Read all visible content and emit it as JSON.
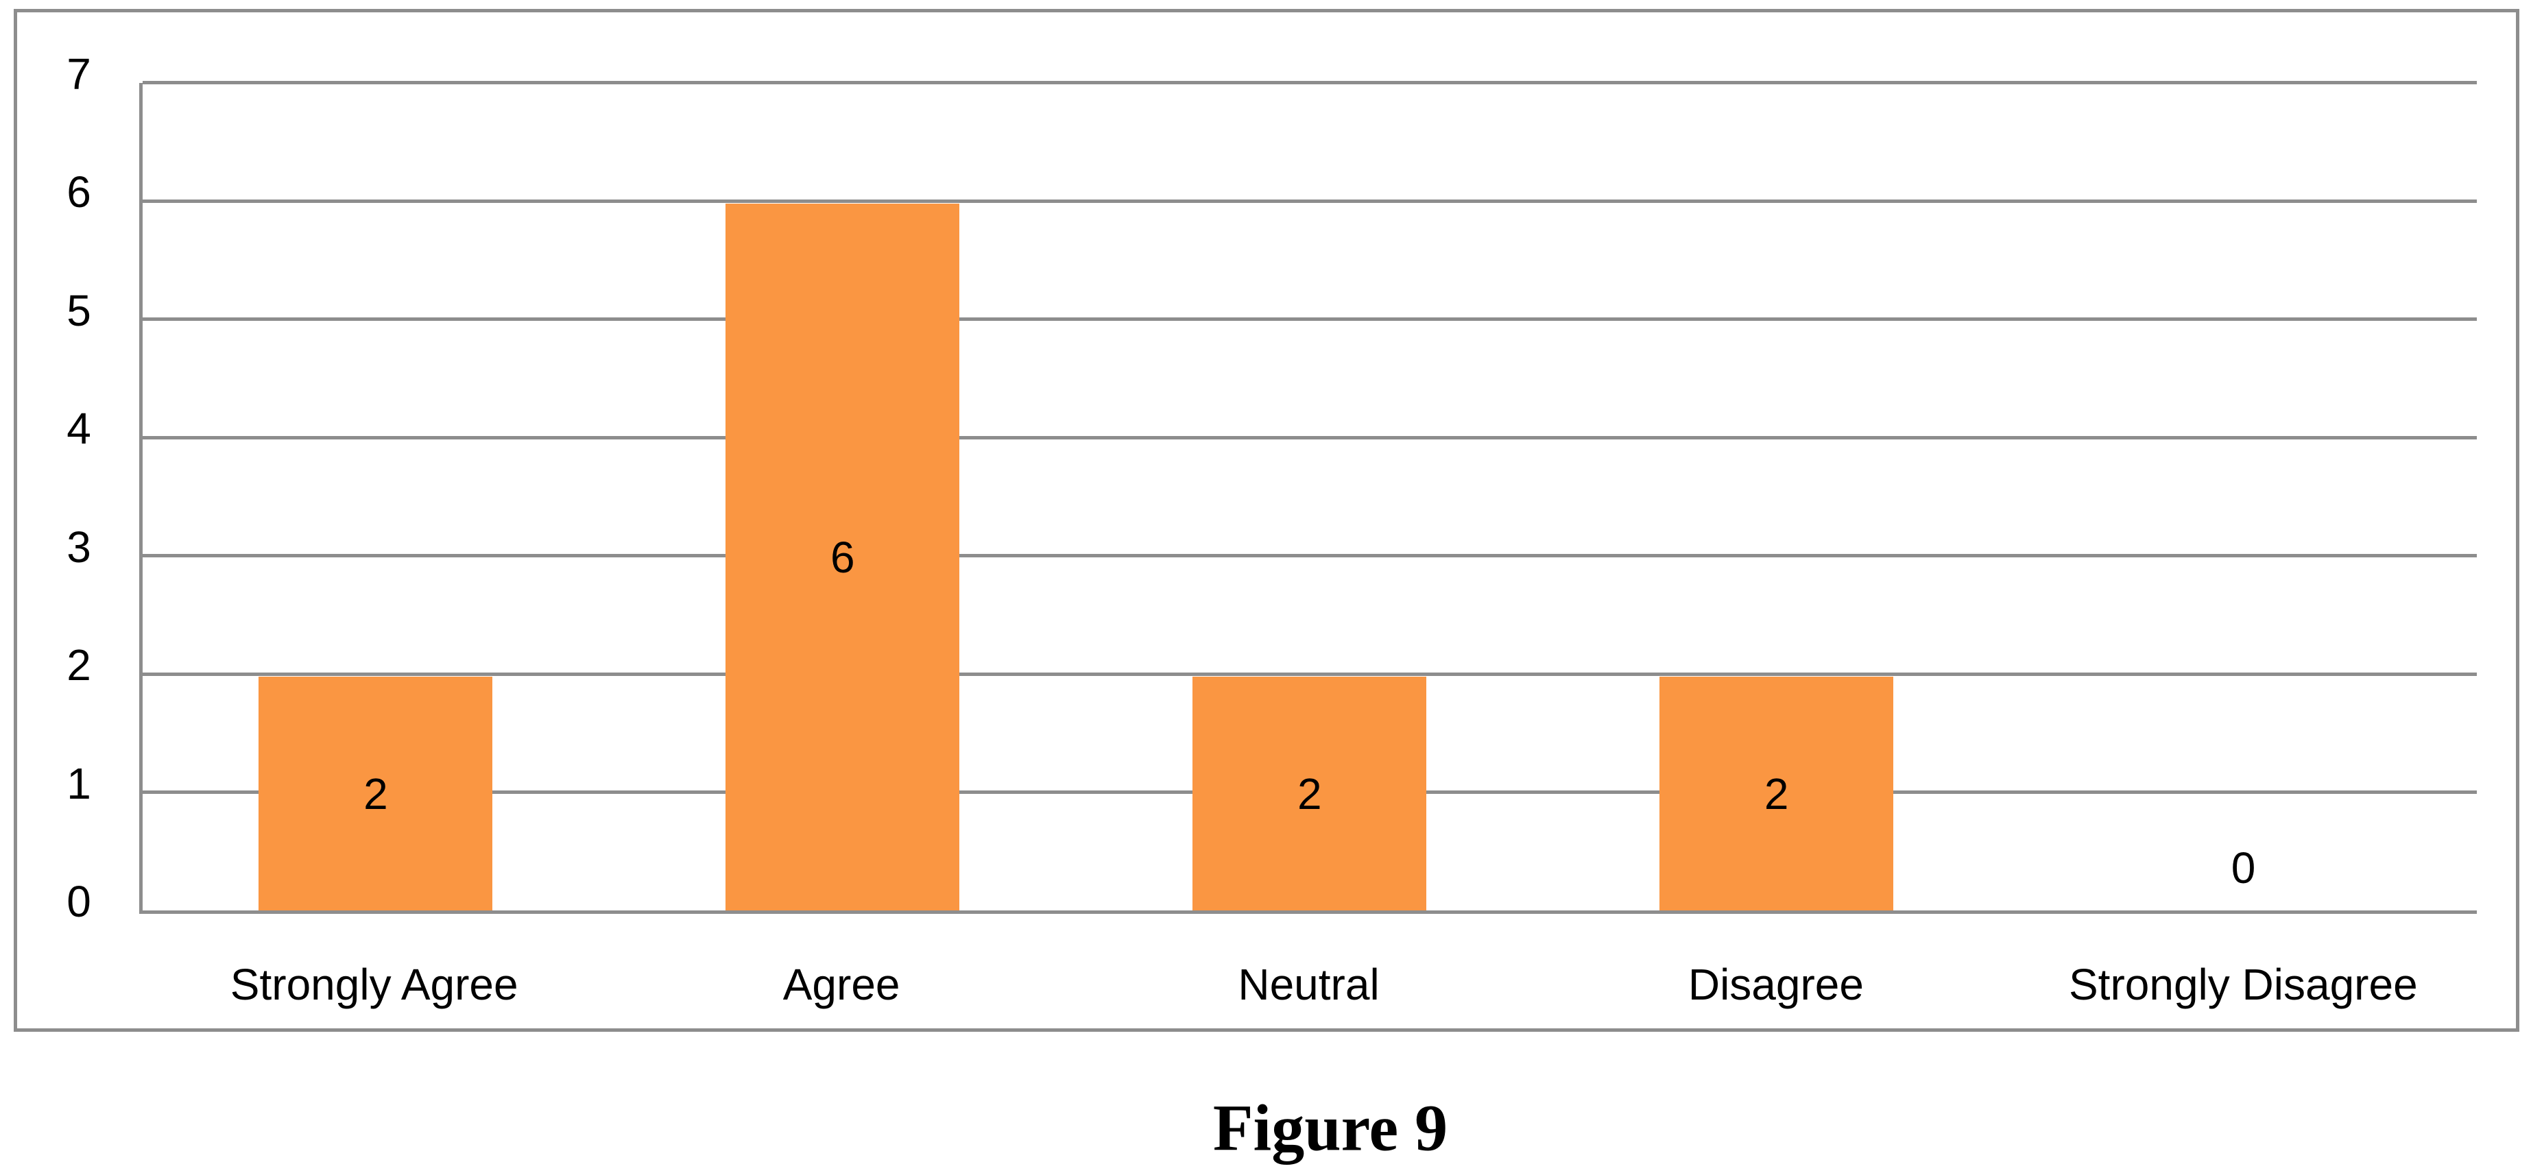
{
  "figure": {
    "caption": "Figure 9"
  },
  "chart_data": {
    "type": "bar",
    "title": "",
    "xlabel": "",
    "ylabel": "",
    "categories": [
      "Strongly Agree",
      "Agree",
      "Neutral",
      "Disagree",
      "Strongly Disagree"
    ],
    "values": [
      2,
      6,
      2,
      2,
      0
    ],
    "data_labels": [
      "2",
      "6",
      "2",
      "2",
      "0"
    ],
    "ylim": [
      0,
      7
    ],
    "yticks": [
      0,
      1,
      2,
      3,
      4,
      5,
      6,
      7
    ],
    "grid": true,
    "legend_position": "none",
    "bar_color": "#FA9642",
    "axis_line_color": "#8D8D8D",
    "label_color": "#000000"
  }
}
